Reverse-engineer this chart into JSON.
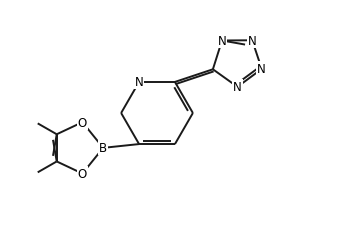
{
  "bg_color": "#ffffff",
  "line_color": "#1a1a1a",
  "line_width": 1.4,
  "font_size": 8.5,
  "figsize": [
    3.48,
    2.28
  ],
  "dpi": 100,
  "xlim": [
    0.0,
    8.5
  ],
  "ylim": [
    0.5,
    6.5
  ]
}
